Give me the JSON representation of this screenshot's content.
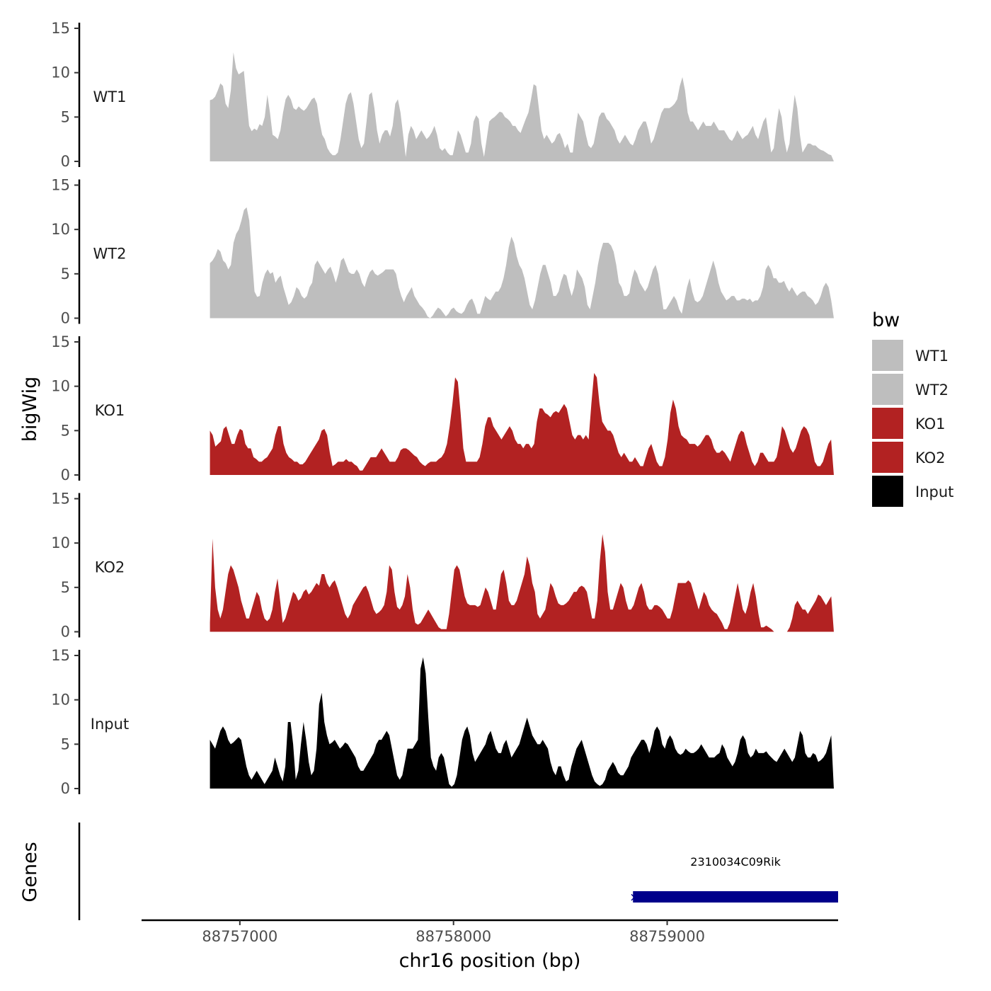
{
  "chart_data": {
    "type": "area",
    "title": "",
    "xlabel": "chr16 position (bp)",
    "ylabel": "bigWig",
    "genes_label": "Genes",
    "xlim": [
      88756540,
      88759800
    ],
    "xticks": [
      88757000,
      88758000,
      88759000
    ],
    "xtick_labels": [
      "88757000",
      "88758000",
      "88759000"
    ],
    "ylim": [
      0,
      15
    ],
    "yticks": [
      0,
      5,
      10,
      15
    ],
    "ytick_labels": [
      "0",
      "5",
      "10",
      "15"
    ],
    "legend": {
      "title": "bw",
      "position": "right",
      "entries": [
        {
          "label": "WT1",
          "color": "#bebebe"
        },
        {
          "label": "WT2",
          "color": "#bebebe"
        },
        {
          "label": "KO1",
          "color": "#b22222"
        },
        {
          "label": "KO2",
          "color": "#b22222"
        },
        {
          "label": "Input",
          "color": "#000000"
        }
      ]
    },
    "series": [
      {
        "name": "WT1",
        "color": "#bebebe",
        "x_start": 88756860,
        "x_end": 88759780,
        "values": [
          6.9,
          7.0,
          7.3,
          8.0,
          8.8,
          8.5,
          6.5,
          6.0,
          8.0,
          12.3,
          10.5,
          9.8,
          10.0,
          10.2,
          7.0,
          4.0,
          3.4,
          3.7,
          3.5,
          4.2,
          4.0,
          5.0,
          7.5,
          5.5,
          3.0,
          2.8,
          2.5,
          3.5,
          5.5,
          7.0,
          7.5,
          7.0,
          6.0,
          5.8,
          6.2,
          5.9,
          5.7,
          6.0,
          6.5,
          7.0,
          7.2,
          6.5,
          4.5,
          3.0,
          2.5,
          1.5,
          1.0,
          0.7,
          0.7,
          1.0,
          2.5,
          4.5,
          6.5,
          7.5,
          7.8,
          6.5,
          4.5,
          2.5,
          1.5,
          2.0,
          4.5,
          7.5,
          7.8,
          6.0,
          3.5,
          2.0,
          3.0,
          3.5,
          3.5,
          2.8,
          4.0,
          6.5,
          7.0,
          5.5,
          3.0,
          0.5,
          3.0,
          4.0,
          3.5,
          2.5,
          3.0,
          3.5,
          3.0,
          2.5,
          2.8,
          3.3,
          4.0,
          3.0,
          1.5,
          1.2,
          1.5,
          1.0,
          0.7,
          0.7,
          2.0,
          3.5,
          3.0,
          2.0,
          1.0,
          1.0,
          2.0,
          4.5,
          5.2,
          4.8,
          2.0,
          0.5,
          2.5,
          4.5,
          4.8,
          5.0,
          5.3,
          5.6,
          5.5,
          5.0,
          4.8,
          4.5,
          4.0,
          4.0,
          3.5,
          3.2,
          4.0,
          4.8,
          5.5,
          7.0,
          8.7,
          8.5,
          6.0,
          3.5,
          2.5,
          3.0,
          2.5,
          2.0,
          2.3,
          3.0,
          3.2,
          2.5,
          1.5,
          2.0,
          1.0,
          1.0,
          3.5,
          5.5,
          5.0,
          4.5,
          3.0,
          1.8,
          1.5,
          2.0,
          3.5,
          5.0,
          5.5,
          5.5,
          4.8,
          4.5,
          4.0,
          3.5,
          2.5,
          2.0,
          2.5,
          3.0,
          2.5,
          2.0,
          1.8,
          2.5,
          3.5,
          4.0,
          4.5,
          4.5,
          3.5,
          2.0,
          2.5,
          3.5,
          4.5,
          5.5,
          6.0,
          6.0,
          6.0,
          6.2,
          6.5,
          7.0,
          8.5,
          9.5,
          8.0,
          5.5,
          4.5,
          4.5,
          4.0,
          3.5,
          4.0,
          4.5,
          4.0,
          4.0,
          4.0,
          4.5,
          4.0,
          3.5,
          3.5,
          3.5,
          3.0,
          2.5,
          2.3,
          2.8,
          3.5,
          3.0,
          2.5,
          2.8,
          3.0,
          3.5,
          4.0,
          3.0,
          2.5,
          3.5,
          4.5,
          5.0,
          3.0,
          1.0,
          1.5,
          4.0,
          6.0,
          5.0,
          2.5,
          1.0,
          2.0,
          5.0,
          7.5,
          6.0,
          3.0,
          1.0,
          1.5,
          2.0,
          2.0,
          1.8,
          1.8,
          1.5,
          1.3,
          1.2,
          1.0,
          0.8,
          0.7,
          0.0
        ]
      },
      {
        "name": "WT2",
        "color": "#bebebe",
        "x_start": 88756860,
        "x_end": 88759780,
        "values": [
          6.2,
          6.5,
          7.0,
          7.8,
          7.5,
          6.5,
          6.2,
          5.5,
          6.0,
          8.5,
          9.5,
          10.0,
          11.0,
          12.2,
          12.5,
          11.0,
          7.0,
          3.0,
          2.4,
          2.5,
          4.0,
          5.0,
          5.5,
          5.0,
          5.2,
          4.0,
          4.5,
          4.8,
          3.5,
          2.5,
          1.5,
          1.8,
          2.5,
          3.5,
          3.2,
          2.5,
          2.2,
          2.5,
          3.5,
          4.0,
          6.0,
          6.5,
          6.0,
          5.5,
          5.0,
          5.5,
          5.8,
          5.0,
          4.0,
          5.0,
          6.5,
          6.8,
          6.0,
          5.2,
          5.0,
          5.0,
          5.5,
          5.0,
          4.0,
          3.5,
          4.5,
          5.2,
          5.5,
          5.0,
          4.8,
          5.0,
          5.2,
          5.5,
          5.5,
          5.5,
          5.5,
          5.0,
          3.5,
          2.5,
          1.8,
          2.5,
          3.0,
          3.5,
          2.5,
          2.0,
          1.5,
          1.2,
          0.8,
          0.2,
          0.0,
          0.3,
          0.8,
          1.2,
          1.0,
          0.6,
          0.2,
          0.5,
          1.0,
          1.2,
          0.8,
          0.6,
          0.5,
          0.8,
          1.5,
          2.0,
          2.2,
          1.5,
          0.5,
          0.5,
          1.5,
          2.5,
          2.2,
          2.0,
          2.5,
          3.0,
          3.0,
          3.5,
          4.5,
          6.0,
          8.0,
          9.2,
          8.5,
          7.0,
          6.0,
          5.5,
          4.5,
          3.0,
          1.5,
          1.0,
          2.0,
          3.5,
          5.0,
          6.0,
          6.0,
          5.0,
          4.0,
          2.5,
          2.5,
          3.0,
          4.2,
          5.0,
          4.8,
          3.5,
          2.5,
          3.5,
          5.5,
          5.0,
          4.5,
          3.5,
          1.5,
          1.0,
          2.5,
          4.0,
          6.0,
          7.5,
          8.5,
          8.5,
          8.5,
          8.2,
          7.5,
          6.0,
          4.0,
          3.5,
          2.5,
          2.5,
          2.8,
          4.5,
          5.5,
          5.0,
          4.0,
          3.5,
          3.0,
          3.5,
          4.5,
          5.5,
          6.0,
          5.0,
          3.0,
          1.0,
          1.0,
          1.5,
          2.0,
          2.5,
          2.0,
          1.0,
          0.5,
          2.0,
          3.5,
          4.5,
          3.0,
          2.0,
          1.8,
          2.0,
          2.5,
          3.5,
          4.5,
          5.5,
          6.5,
          5.5,
          4.0,
          3.0,
          2.5,
          2.0,
          2.2,
          2.5,
          2.5,
          2.0,
          2.0,
          2.2,
          2.2,
          2.0,
          2.2,
          1.8,
          2.0,
          2.0,
          2.5,
          3.5,
          5.5,
          6.0,
          5.5,
          4.5,
          4.5,
          4.0,
          4.0,
          4.2,
          3.5,
          3.0,
          3.5,
          3.0,
          2.5,
          2.8,
          3.0,
          3.0,
          2.5,
          2.3,
          2.0,
          1.5,
          1.8,
          2.5,
          3.5,
          4.0,
          3.5,
          2.0,
          0.0
        ]
      },
      {
        "name": "KO1",
        "color": "#b22222",
        "x_start": 88756860,
        "x_end": 88759780,
        "values": [
          5.0,
          4.5,
          3.2,
          3.5,
          3.8,
          5.2,
          5.5,
          4.5,
          3.5,
          3.5,
          4.5,
          5.2,
          5.0,
          3.5,
          3.0,
          3.0,
          2.0,
          1.8,
          1.5,
          1.5,
          1.8,
          2.0,
          2.5,
          3.0,
          4.5,
          5.5,
          5.5,
          3.5,
          2.5,
          2.0,
          1.8,
          1.5,
          1.5,
          1.2,
          1.2,
          1.5,
          2.0,
          2.5,
          3.0,
          3.5,
          4.0,
          5.0,
          5.2,
          4.5,
          2.5,
          1.0,
          1.2,
          1.5,
          1.5,
          1.5,
          1.8,
          1.5,
          1.5,
          1.2,
          1.0,
          0.5,
          0.5,
          1.0,
          1.5,
          2.0,
          2.0,
          2.0,
          2.5,
          3.0,
          2.5,
          2.0,
          1.5,
          1.5,
          1.5,
          2.0,
          2.8,
          3.0,
          3.0,
          2.8,
          2.5,
          2.2,
          2.0,
          1.5,
          1.2,
          1.0,
          1.3,
          1.5,
          1.5,
          1.5,
          1.8,
          2.0,
          2.5,
          3.5,
          5.5,
          8.0,
          11.0,
          10.5,
          7.0,
          3.0,
          1.5,
          1.5,
          1.5,
          1.5,
          1.5,
          2.0,
          3.5,
          5.5,
          6.5,
          6.5,
          5.5,
          5.0,
          4.5,
          4.0,
          4.5,
          5.0,
          5.5,
          5.0,
          4.0,
          3.5,
          3.5,
          3.0,
          3.5,
          3.5,
          3.0,
          3.5,
          6.0,
          7.5,
          7.5,
          7.0,
          6.8,
          6.5,
          7.0,
          7.2,
          7.0,
          7.5,
          8.0,
          7.5,
          6.0,
          4.5,
          4.0,
          4.5,
          4.5,
          4.0,
          4.5,
          4.0,
          8.0,
          11.5,
          11.0,
          8.0,
          6.0,
          5.5,
          5.0,
          5.0,
          4.5,
          3.5,
          2.5,
          2.0,
          2.5,
          2.0,
          1.5,
          1.5,
          2.0,
          1.5,
          1.0,
          1.0,
          2.0,
          3.0,
          3.5,
          2.5,
          1.5,
          1.0,
          1.0,
          2.0,
          4.0,
          7.0,
          8.5,
          7.5,
          5.5,
          4.5,
          4.2,
          4.0,
          3.5,
          3.5,
          3.5,
          3.2,
          3.5,
          4.0,
          4.5,
          4.5,
          4.0,
          3.0,
          2.5,
          2.5,
          2.8,
          2.5,
          2.0,
          1.5,
          2.5,
          3.5,
          4.5,
          5.0,
          4.8,
          3.5,
          2.5,
          1.5,
          1.0,
          1.5,
          2.5,
          2.5,
          2.0,
          1.5,
          1.5,
          1.5,
          2.0,
          3.5,
          5.5,
          5.0,
          4.0,
          3.0,
          2.5,
          3.0,
          4.0,
          5.0,
          5.5,
          5.2,
          4.5,
          3.0,
          1.5,
          1.0,
          1.0,
          1.5,
          2.5,
          3.5,
          4.0,
          0.0
        ]
      },
      {
        "name": "KO2",
        "color": "#b22222",
        "x_start": 88756860,
        "x_end": 88759780,
        "values": [
          1.0,
          10.5,
          5.0,
          2.5,
          1.5,
          2.5,
          4.5,
          6.5,
          7.5,
          7.0,
          6.0,
          5.0,
          3.5,
          2.5,
          1.5,
          1.5,
          2.5,
          3.5,
          4.5,
          4.0,
          2.5,
          1.5,
          1.2,
          1.5,
          2.5,
          4.5,
          6.0,
          3.5,
          1.0,
          1.5,
          2.5,
          3.5,
          4.5,
          4.2,
          3.5,
          3.8,
          4.5,
          4.8,
          4.2,
          4.5,
          5.0,
          5.5,
          5.2,
          6.5,
          6.5,
          5.5,
          5.0,
          5.5,
          5.8,
          5.0,
          4.0,
          3.0,
          2.0,
          1.5,
          2.0,
          3.0,
          3.5,
          4.0,
          4.5,
          5.0,
          5.2,
          4.5,
          3.5,
          2.5,
          2.0,
          2.2,
          2.5,
          3.0,
          4.5,
          7.5,
          7.0,
          4.5,
          2.8,
          2.5,
          3.0,
          4.0,
          6.5,
          5.0,
          2.5,
          1.0,
          0.8,
          1.0,
          1.5,
          2.0,
          2.5,
          2.0,
          1.5,
          1.0,
          0.5,
          0.3,
          0.3,
          0.3,
          2.0,
          4.5,
          7.0,
          7.5,
          7.0,
          5.5,
          4.0,
          3.2,
          3.0,
          3.0,
          3.0,
          2.8,
          3.0,
          4.0,
          5.0,
          4.5,
          3.5,
          2.5,
          2.5,
          4.5,
          6.5,
          7.0,
          5.5,
          3.5,
          3.0,
          3.0,
          3.5,
          4.5,
          5.5,
          6.5,
          8.5,
          7.5,
          5.5,
          4.5,
          2.0,
          1.5,
          2.0,
          2.5,
          4.0,
          5.5,
          5.0,
          4.0,
          3.2,
          3.0,
          3.0,
          3.2,
          3.5,
          4.0,
          4.5,
          4.5,
          5.0,
          5.2,
          5.0,
          4.5,
          3.0,
          1.5,
          1.5,
          3.5,
          8.0,
          11.0,
          9.0,
          4.5,
          2.5,
          2.5,
          3.5,
          4.5,
          5.5,
          5.0,
          3.5,
          2.5,
          2.5,
          3.0,
          4.0,
          5.0,
          5.5,
          4.5,
          3.0,
          2.5,
          2.5,
          3.0,
          3.0,
          2.8,
          2.5,
          2.0,
          1.5,
          1.5,
          2.5,
          4.0,
          5.5,
          5.5,
          5.5,
          5.5,
          5.8,
          5.5,
          4.5,
          3.5,
          2.5,
          3.5,
          4.5,
          4.0,
          3.0,
          2.5,
          2.2,
          2.0,
          1.5,
          1.0,
          0.3,
          0.3,
          1.0,
          2.5,
          4.0,
          5.5,
          4.0,
          2.5,
          2.0,
          3.0,
          4.5,
          5.5,
          4.0,
          2.0,
          0.5,
          0.5,
          0.7,
          0.5,
          0.3,
          0.0,
          0.0,
          0.0,
          0.0,
          0.0,
          0.0,
          0.5,
          1.5,
          3.0,
          3.5,
          3.0,
          2.5,
          2.5,
          2.0,
          2.5,
          3.0,
          3.5,
          4.2,
          4.0,
          3.5,
          3.0,
          3.5,
          4.0,
          0.0
        ]
      },
      {
        "name": "Input",
        "color": "#000000",
        "x_start": 88756860,
        "x_end": 88759780,
        "values": [
          5.5,
          5.0,
          4.5,
          5.5,
          6.5,
          7.0,
          6.5,
          5.5,
          5.0,
          5.2,
          5.5,
          5.8,
          5.5,
          4.0,
          2.5,
          1.5,
          1.0,
          1.5,
          2.0,
          1.5,
          1.0,
          0.5,
          1.0,
          1.5,
          2.0,
          3.5,
          2.5,
          1.5,
          0.8,
          2.5,
          7.5,
          7.5,
          5.0,
          1.0,
          2.0,
          5.0,
          7.5,
          5.5,
          3.0,
          1.5,
          2.0,
          4.5,
          9.5,
          10.8,
          7.5,
          6.0,
          5.0,
          5.2,
          5.5,
          5.0,
          4.5,
          4.8,
          5.2,
          5.0,
          4.5,
          4.0,
          3.5,
          2.5,
          2.0,
          2.0,
          2.5,
          3.0,
          3.5,
          4.0,
          5.0,
          5.5,
          5.5,
          6.0,
          6.5,
          6.0,
          4.5,
          3.0,
          1.5,
          1.0,
          1.5,
          3.0,
          4.5,
          4.5,
          4.5,
          5.0,
          5.5,
          13.5,
          14.8,
          13.0,
          8.0,
          3.5,
          2.5,
          2.0,
          3.5,
          4.0,
          3.5,
          2.0,
          0.5,
          0.2,
          0.5,
          1.5,
          3.5,
          5.5,
          6.5,
          7.0,
          6.0,
          4.0,
          3.0,
          3.5,
          4.0,
          4.5,
          5.0,
          6.0,
          6.5,
          5.5,
          4.5,
          4.0,
          4.0,
          5.0,
          5.5,
          4.5,
          3.5,
          4.0,
          4.5,
          5.0,
          6.0,
          7.0,
          8.0,
          7.0,
          6.0,
          5.5,
          5.0,
          5.0,
          5.5,
          5.0,
          4.5,
          3.0,
          2.0,
          1.5,
          2.5,
          2.5,
          1.5,
          0.8,
          1.0,
          2.5,
          3.5,
          4.5,
          5.0,
          5.5,
          4.5,
          3.5,
          2.5,
          1.5,
          0.8,
          0.5,
          0.3,
          0.5,
          1.0,
          2.0,
          2.5,
          3.0,
          2.5,
          1.8,
          1.5,
          1.5,
          2.0,
          2.5,
          3.5,
          4.0,
          4.5,
          5.0,
          5.5,
          5.5,
          5.0,
          4.0,
          5.0,
          6.5,
          7.0,
          6.5,
          5.0,
          4.5,
          5.5,
          6.0,
          5.5,
          4.5,
          4.0,
          3.8,
          4.0,
          4.5,
          4.2,
          4.0,
          4.0,
          4.2,
          4.5,
          5.0,
          4.5,
          4.0,
          3.5,
          3.5,
          3.5,
          3.8,
          4.0,
          5.0,
          4.5,
          3.5,
          3.0,
          2.5,
          3.0,
          4.0,
          5.5,
          6.0,
          5.5,
          4.0,
          3.5,
          3.8,
          4.5,
          4.0,
          4.0,
          4.0,
          4.2,
          3.8,
          3.5,
          3.2,
          3.0,
          3.5,
          4.0,
          4.5,
          4.0,
          3.5,
          3.0,
          3.5,
          5.0,
          6.5,
          6.0,
          4.0,
          3.5,
          3.5,
          4.0,
          3.8,
          3.0,
          3.2,
          3.5,
          4.0,
          5.0,
          6.0,
          0.0
        ]
      }
    ],
    "genes": [
      {
        "name": "2310034C09Rik",
        "start": 88758840,
        "end": 88759800,
        "strand": "-",
        "color": "#00008b"
      }
    ]
  }
}
